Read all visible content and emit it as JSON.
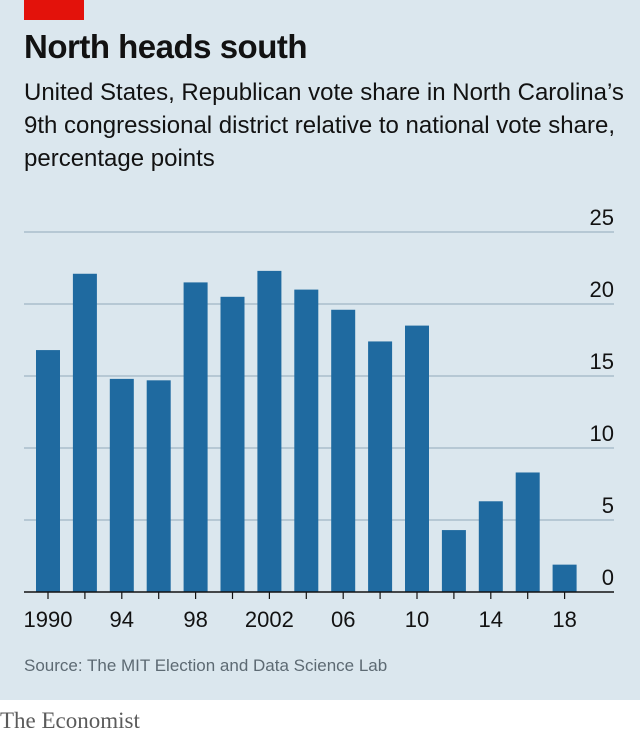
{
  "header": {
    "title": "North heads south",
    "subtitle": "United States, Republican vote share in North Carolina’s 9th congressional district relative to national vote share, percentage points"
  },
  "footer": {
    "source": "Source: The MIT Election and Data Science Lab",
    "brand": "The Economist"
  },
  "colors": {
    "bar": "#1f6aa0",
    "panel": "#dbe7ee",
    "accent": "#e3120b",
    "grid": "#9fb6c5",
    "axis": "#121212"
  },
  "chart_data": {
    "type": "bar",
    "title": "North heads south",
    "subtitle": "United States, Republican vote share in North Carolina’s 9th congressional district relative to national vote share, percentage points",
    "categories": [
      1990,
      1992,
      1994,
      1996,
      1998,
      2000,
      2002,
      2004,
      2006,
      2008,
      2010,
      2012,
      2014,
      2016,
      2018
    ],
    "values": [
      16.8,
      22.1,
      14.8,
      14.7,
      21.5,
      20.5,
      22.3,
      21.0,
      19.6,
      17.4,
      18.5,
      4.3,
      6.3,
      8.3,
      1.9
    ],
    "x_tick_labels": [
      {
        "x": 1990,
        "label": "1990"
      },
      {
        "x": 1994,
        "label": "94"
      },
      {
        "x": 1998,
        "label": "98"
      },
      {
        "x": 2002,
        "label": "2002"
      },
      {
        "x": 2006,
        "label": "06"
      },
      {
        "x": 2010,
        "label": "10"
      },
      {
        "x": 2014,
        "label": "14"
      },
      {
        "x": 2018,
        "label": "18"
      }
    ],
    "y_ticks": [
      0,
      5,
      10,
      15,
      20,
      25
    ],
    "ylim": [
      0,
      25
    ],
    "y_axis_side": "right",
    "grid": true,
    "source": "Source: The MIT Election and Data Science Lab"
  }
}
